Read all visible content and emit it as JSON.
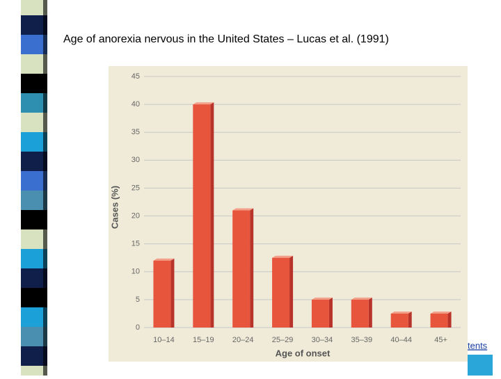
{
  "slide_title": "Age of anorexia nervous in the United States – Lucas et al. (1991)",
  "footer_link": "tents",
  "chart_data": {
    "type": "bar",
    "categories": [
      "10–14",
      "15–19",
      "20–24",
      "25–29",
      "30–34",
      "35–39",
      "40–44",
      "45+"
    ],
    "values": [
      12,
      40,
      21,
      12.5,
      5,
      5,
      2.5,
      2.5
    ],
    "color": "#e8553d",
    "x_label": "Age of onset",
    "y_label": "Cases (%)",
    "ylim": [
      0,
      45
    ],
    "yticks": [
      0,
      5,
      10,
      15,
      20,
      25,
      30,
      35,
      40,
      45
    ],
    "grid": true
  }
}
